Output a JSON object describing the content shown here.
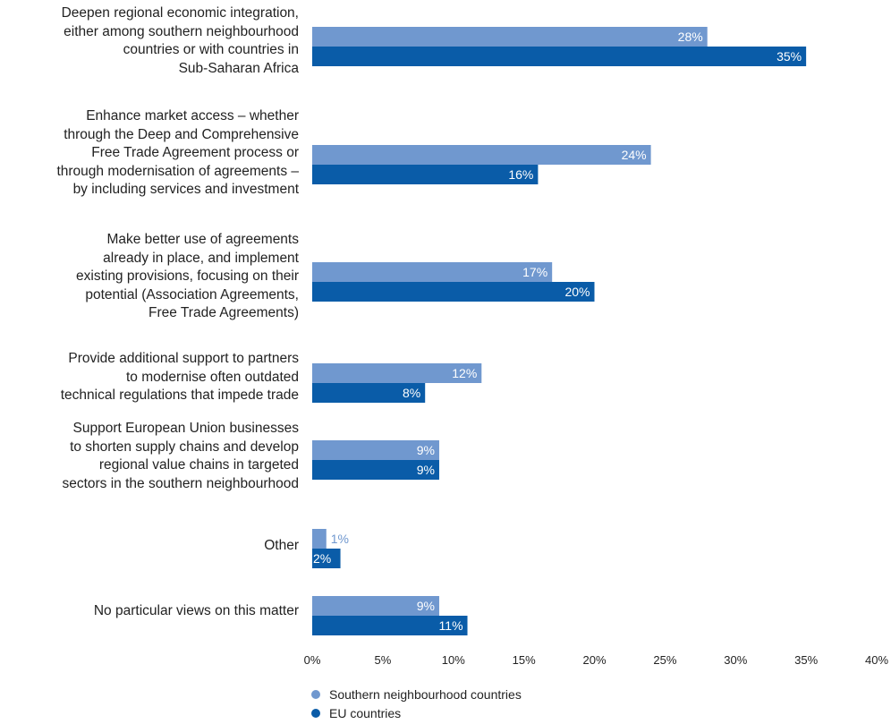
{
  "chart_data": {
    "type": "bar",
    "orientation": "horizontal",
    "categories": [
      "Deepen regional economic integration,\neither among southern neighbourhood\ncountries or with countries in\nSub-Saharan Africa",
      "Enhance market access – whether\nthrough the Deep and Comprehensive\nFree Trade Agreement process or\nthrough modernisation of agreements –\nby including services and investment",
      "Make better use of agreements\nalready in place, and implement\nexisting provisions, focusing on their\npotential (Association Agreements,\nFree Trade Agreements)",
      "Provide additional support to partners\nto modernise often outdated\ntechnical regulations that impede trade",
      "Support European Union businesses\nto shorten supply chains and develop\nregional value chains in targeted\nsectors in the southern neighbourhood",
      "Other",
      "No particular views on this matter"
    ],
    "series": [
      {
        "name": "Southern neighbourhood countries",
        "color": "#7098cf",
        "values": [
          28,
          24,
          17,
          12,
          9,
          1,
          9
        ],
        "labels": [
          "28%",
          "24%",
          "17%",
          "12%",
          "9%",
          "1%",
          "9%"
        ]
      },
      {
        "name": "EU countries",
        "color": "#0a5ca8",
        "values": [
          35,
          16,
          20,
          8,
          9,
          2,
          11
        ],
        "labels": [
          "35%",
          "16%",
          "20%",
          "8%",
          "9%",
          "2%",
          "11%"
        ]
      }
    ],
    "xlim": [
      0,
      40
    ],
    "xticks": [
      "0%",
      "5%",
      "10%",
      "15%",
      "20%",
      "25%",
      "30%",
      "35%",
      "40%"
    ],
    "legend_position": "bottom-left",
    "grid": false
  }
}
